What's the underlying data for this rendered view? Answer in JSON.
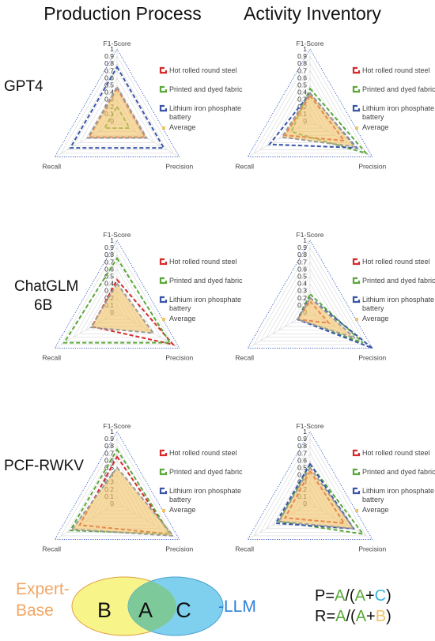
{
  "column_titles": [
    "Production Process",
    "Activity Inventory"
  ],
  "row_labels": [
    [
      "GPT4"
    ],
    [
      "ChatGLM",
      "6B"
    ],
    [
      "PCF-RWKV"
    ]
  ],
  "colors": {
    "steel": "#d42a2a",
    "fabric": "#5aa83a",
    "battery": "#3a55a8",
    "average": "#f0c468",
    "average_line": "#9a9a9a",
    "venn_expert": "#f7f58a",
    "venn_llm": "#7fd0ef",
    "venn_overlap": "#7ec99a",
    "label_expert": "#f2a766",
    "label_llm": "#2f7fd6",
    "letter_a": "#5aa83a",
    "letter_b": "#f0c468",
    "letter_c": "#35b6e0"
  },
  "chart_data": [
    {
      "type": "radar",
      "row": 0,
      "col": 0,
      "axes": [
        "F1-Score",
        "Precision",
        "Recall"
      ],
      "ticks": [
        "1",
        "0.9",
        "0.8",
        "0.7",
        "0.6",
        "0.5",
        "0.4",
        "0.3",
        "0.2",
        "0.1",
        "0"
      ],
      "range": [
        0,
        1
      ],
      "series": [
        {
          "name": "Hot rolled round steel",
          "values": [
            0.45,
            0.45,
            0.45
          ]
        },
        {
          "name": "Printed and dyed fabric",
          "values": [
            0.2,
            0.2,
            0.2
          ]
        },
        {
          "name": "Lithium iron phosphate battery",
          "values": [
            0.75,
            0.75,
            0.75
          ]
        },
        {
          "name": "Average",
          "values": [
            0.47,
            0.47,
            0.47
          ]
        }
      ]
    },
    {
      "type": "radar",
      "row": 0,
      "col": 1,
      "axes": [
        "F1-Score",
        "Precision",
        "Recall"
      ],
      "ticks": [
        "1",
        "0.9",
        "0.8",
        "0.7",
        "0.6",
        "0.5",
        "0.4",
        "0.3",
        "0.2",
        "0.1",
        "0"
      ],
      "range": [
        0,
        1
      ],
      "series": [
        {
          "name": "Hot rolled round steel",
          "values": [
            0.35,
            0.55,
            0.4
          ]
        },
        {
          "name": "Printed and dyed fabric",
          "values": [
            0.45,
            0.9,
            0.3
          ]
        },
        {
          "name": "Lithium iron phosphate battery",
          "values": [
            0.38,
            0.75,
            0.65
          ]
        },
        {
          "name": "Average",
          "values": [
            0.39,
            0.72,
            0.45
          ]
        }
      ]
    },
    {
      "type": "radar",
      "row": 1,
      "col": 0,
      "axes": [
        "F1-Score",
        "Precision",
        "Recall"
      ],
      "ticks": [
        "1",
        "0.9",
        "0.8",
        "0.7",
        "0.6",
        "0.5",
        "0.4",
        "0.3",
        "0.2",
        "0.1",
        "0"
      ],
      "range": [
        0,
        1
      ],
      "series": [
        {
          "name": "Hot rolled round steel",
          "values": [
            0.45,
            0.9,
            0.4
          ]
        },
        {
          "name": "Printed and dyed fabric",
          "values": [
            0.75,
            0.85,
            0.85
          ]
        },
        {
          "name": "Lithium iron phosphate battery",
          "values": [
            0.0,
            0.0,
            0.0
          ]
        },
        {
          "name": "Average",
          "values": [
            0.4,
            0.58,
            0.42
          ]
        }
      ]
    },
    {
      "type": "radar",
      "row": 1,
      "col": 1,
      "axes": [
        "F1-Score",
        "Precision",
        "Recall"
      ],
      "ticks": [
        "1",
        "0.9",
        "0.8",
        "0.7",
        "0.6",
        "0.5",
        "0.4",
        "0.3",
        "0.2",
        "0.1",
        "0"
      ],
      "range": [
        0,
        1
      ],
      "series": [
        {
          "name": "Hot rolled round steel",
          "values": [
            0.15,
            0.3,
            0.2
          ]
        },
        {
          "name": "Printed and dyed fabric",
          "values": [
            0.25,
            0.85,
            0.2
          ]
        },
        {
          "name": "Lithium iron phosphate battery",
          "values": [
            0.2,
            1.0,
            0.2
          ]
        },
        {
          "name": "Average",
          "values": [
            0.2,
            0.72,
            0.2
          ]
        }
      ]
    },
    {
      "type": "radar",
      "row": 2,
      "col": 0,
      "axes": [
        "F1-Score",
        "Precision",
        "Recall"
      ],
      "ticks": [
        "1",
        "0.9",
        "0.8",
        "0.7",
        "0.6",
        "0.5",
        "0.4",
        "0.3",
        "0.2",
        "0.1",
        "0"
      ],
      "range": [
        0,
        1
      ],
      "series": [
        {
          "name": "Hot rolled round steel",
          "values": [
            0.65,
            0.85,
            0.6
          ]
        },
        {
          "name": "Printed and dyed fabric",
          "values": [
            0.75,
            0.85,
            0.75
          ]
        },
        {
          "name": "Lithium iron phosphate battery",
          "values": [
            0.0,
            0.0,
            0.0
          ]
        },
        {
          "name": "Average",
          "values": [
            0.5,
            0.9,
            0.72
          ]
        }
      ]
    },
    {
      "type": "radar",
      "row": 2,
      "col": 1,
      "axes": [
        "F1-Score",
        "Precision",
        "Recall"
      ],
      "ticks": [
        "1",
        "0.9",
        "0.8",
        "0.7",
        "0.6",
        "0.5",
        "0.4",
        "0.3",
        "0.2",
        "0.1",
        "0"
      ],
      "range": [
        0,
        1
      ],
      "series": [
        {
          "name": "Hot rolled round steel",
          "values": [
            0.45,
            0.55,
            0.4
          ]
        },
        {
          "name": "Printed and dyed fabric",
          "values": [
            0.55,
            0.85,
            0.5
          ]
        },
        {
          "name": "Lithium iron phosphate battery",
          "values": [
            0.55,
            0.7,
            0.55
          ]
        },
        {
          "name": "Average",
          "values": [
            0.5,
            0.7,
            0.5
          ]
        }
      ]
    }
  ],
  "legend": [
    {
      "lines": [
        "Hot rolled round steel"
      ],
      "key": "steel"
    },
    {
      "lines": [
        "Printed and dyed fabric"
      ],
      "key": "fabric"
    },
    {
      "lines": [
        "Lithium iron phosphate",
        "battery"
      ],
      "key": "battery"
    },
    {
      "lines": [
        "Average"
      ],
      "key": "average"
    }
  ],
  "venn": {
    "left_label": [
      "Expert-",
      "Base"
    ],
    "right_label": "-LLM",
    "regions": {
      "b": "B",
      "a": "A",
      "c": "C"
    }
  },
  "formulas": {
    "precision": {
      "lhs": "P=",
      "a1": "A",
      "slash": "/(",
      "a2": "A",
      "plus": "+",
      "other": "C",
      "close": ")"
    },
    "recall": {
      "lhs": "R=",
      "a1": "A",
      "slash": "/(",
      "a2": "A",
      "plus": "+",
      "other": "B",
      "close": ")"
    }
  }
}
